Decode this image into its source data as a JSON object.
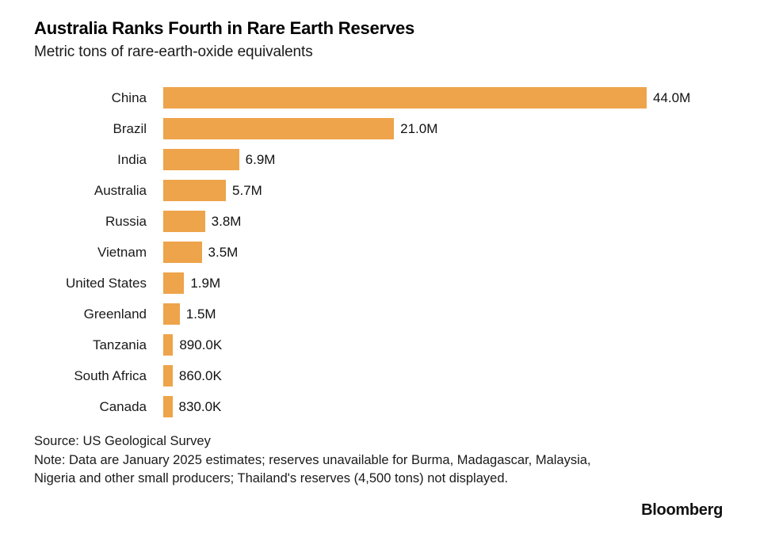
{
  "title": "Australia Ranks Fourth in Rare Earth Reserves",
  "subtitle": "Metric tons of rare-earth-oxide equivalents",
  "chart_data": {
    "type": "bar",
    "orientation": "horizontal",
    "categories": [
      "China",
      "Brazil",
      "India",
      "Australia",
      "Russia",
      "Vietnam",
      "United States",
      "Greenland",
      "Tanzania",
      "South Africa",
      "Canada"
    ],
    "values": [
      44.0,
      21.0,
      6.9,
      5.7,
      3.8,
      3.5,
      1.9,
      1.5,
      0.89,
      0.86,
      0.83
    ],
    "value_labels": [
      "44.0M",
      "21.0M",
      "6.9M",
      "5.7M",
      "3.8M",
      "3.5M",
      "1.9M",
      "1.5M",
      "890.0K",
      "860.0K",
      "830.0K"
    ],
    "title": "Australia Ranks Fourth in Rare Earth Reserves",
    "xlabel": "",
    "ylabel": "",
    "xlim": [
      0,
      44
    ],
    "grid": false,
    "legend": false,
    "bar_color": "#EEA44B"
  },
  "footer": {
    "source": "Source: US Geological Survey",
    "note": "Note: Data are January 2025 estimates; reserves unavailable for Burma, Madagascar, Malaysia, Nigeria and other small producers; Thailand's reserves (4,500 tons) not displayed.",
    "brand": "Bloomberg"
  }
}
